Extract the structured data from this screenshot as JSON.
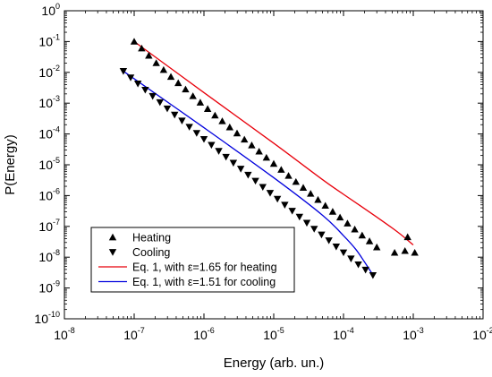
{
  "chart_data": {
    "type": "scatter",
    "xlabel": "Energy (arb. un.)",
    "ylabel": "P(Energy)",
    "x_scale": "log",
    "y_scale": "log",
    "xlim": [
      1e-08,
      0.01
    ],
    "ylim": [
      1e-10,
      1
    ],
    "x_ticks": [
      {
        "base": "10",
        "exp": "-8",
        "value": 1e-08
      },
      {
        "base": "10",
        "exp": "-7",
        "value": 1e-07
      },
      {
        "base": "10",
        "exp": "-6",
        "value": 1e-06
      },
      {
        "base": "10",
        "exp": "-5",
        "value": 1e-05
      },
      {
        "base": "10",
        "exp": "-4",
        "value": 0.0001
      },
      {
        "base": "10",
        "exp": "-3",
        "value": 0.001
      },
      {
        "base": "10",
        "exp": "-2",
        "value": 0.01
      }
    ],
    "y_ticks": [
      {
        "base": "10",
        "exp": "0",
        "value": 1
      },
      {
        "base": "10",
        "exp": "-1",
        "value": 0.1
      },
      {
        "base": "10",
        "exp": "-2",
        "value": 0.01
      },
      {
        "base": "10",
        "exp": "-3",
        "value": 0.001
      },
      {
        "base": "10",
        "exp": "-4",
        "value": 0.0001
      },
      {
        "base": "10",
        "exp": "-5",
        "value": 1e-05
      },
      {
        "base": "10",
        "exp": "-6",
        "value": 1e-06
      },
      {
        "base": "10",
        "exp": "-7",
        "value": 1e-07
      },
      {
        "base": "10",
        "exp": "-8",
        "value": 1e-08
      },
      {
        "base": "10",
        "exp": "-9",
        "value": 1e-09
      },
      {
        "base": "10",
        "exp": "-10",
        "value": 1e-10
      }
    ],
    "grid": false,
    "legend_position": "bottom-left",
    "series": [
      {
        "name": "Heating",
        "kind": "points",
        "marker": "triangle-up",
        "color": "#000000",
        "x": [
          1e-07,
          1.28e-07,
          1.62e-07,
          2.07e-07,
          2.64e-07,
          3.36e-07,
          4.28e-07,
          5.45e-07,
          6.95e-07,
          8.86e-07,
          1.13e-06,
          1.44e-06,
          1.83e-06,
          2.34e-06,
          2.98e-06,
          3.8e-06,
          4.84e-06,
          6.17e-06,
          7.86e-06,
          1e-05,
          1.28e-05,
          1.63e-05,
          2.08e-05,
          2.65e-05,
          3.38e-05,
          4.31e-05,
          5.49e-05,
          7e-05,
          8.92e-05,
          0.000114,
          0.000145,
          0.000185,
          0.000236,
          0.0003,
          0.00054,
          0.00076,
          0.00083,
          0.00105
        ],
        "y": [
          0.1,
          0.06,
          0.035,
          0.02,
          0.012,
          0.0072,
          0.0045,
          0.0028,
          0.0017,
          0.00105,
          0.00065,
          0.0004,
          0.00026,
          0.000165,
          0.000105,
          6.6e-05,
          4.3e-05,
          2.7e-05,
          1.7e-05,
          1.08e-05,
          6.9e-06,
          4.4e-06,
          2.8e-06,
          1.8e-06,
          1.15e-06,
          7.3e-07,
          4.7e-07,
          3e-07,
          1.95e-07,
          1.25e-07,
          8e-08,
          5.1e-08,
          3.3e-08,
          2.1e-08,
          1.4e-08,
          1.6e-08,
          4.5e-08,
          1.4e-08
        ]
      },
      {
        "name": "Cooling",
        "kind": "points",
        "marker": "triangle-down",
        "color": "#000000",
        "x": [
          7e-08,
          8.9e-08,
          1.13e-07,
          1.44e-07,
          1.84e-07,
          2.34e-07,
          2.98e-07,
          3.8e-07,
          4.84e-07,
          6.17e-07,
          7.86e-07,
          1e-06,
          1.28e-06,
          1.63e-06,
          2.07e-06,
          2.64e-06,
          3.37e-06,
          4.29e-06,
          5.47e-06,
          6.97e-06,
          8.88e-06,
          1.13e-05,
          1.44e-05,
          1.84e-05,
          2.34e-05,
          2.98e-05,
          3.8e-05,
          4.84e-05,
          6.17e-05,
          7.86e-05,
          0.0001,
          0.000128,
          0.000163,
          0.000207,
          0.000264
        ],
        "y": [
          0.011,
          0.0068,
          0.0043,
          0.0027,
          0.0017,
          0.00107,
          0.00067,
          0.00042,
          0.00027,
          0.00017,
          0.000107,
          6.8e-05,
          4.4e-05,
          2.8e-05,
          1.8e-05,
          1.15e-05,
          7.4e-06,
          4.7e-06,
          3e-06,
          1.9e-06,
          1.22e-06,
          7.8e-07,
          5e-07,
          3.2e-07,
          2.05e-07,
          1.3e-07,
          8.3e-08,
          5.4e-08,
          3.5e-08,
          2.2e-08,
          1.42e-08,
          9e-09,
          5.8e-09,
          3.9e-09,
          2.6e-09
        ]
      },
      {
        "name": "Eq. 1, with ε=1.65 for heating",
        "kind": "line",
        "color": "#e8000b",
        "x": [
          1e-07,
          1e-06,
          1e-05,
          5e-05,
          0.0001,
          0.0003,
          0.0006,
          0.001
        ],
        "y": [
          0.1,
          0.0022,
          5e-05,
          3.3e-06,
          1.1e-06,
          2e-07,
          6.5e-08,
          2.5e-08
        ]
      },
      {
        "name": "Eq. 1, with ε=1.51 for cooling",
        "kind": "line",
        "color": "#0000dd",
        "x": [
          7e-08,
          1e-07,
          1e-06,
          1e-05,
          5e-05,
          0.0001,
          0.00015,
          0.0002,
          0.00026
        ],
        "y": [
          0.011,
          0.0062,
          0.00016,
          3.8e-06,
          2.3e-07,
          5e-08,
          1.8e-08,
          7e-09,
          2.8e-09
        ]
      }
    ]
  },
  "legend": {
    "entries": [
      {
        "label": "Heating",
        "symbol": "triangle-up",
        "color": "#000000"
      },
      {
        "label": "Cooling",
        "symbol": "triangle-down",
        "color": "#000000"
      },
      {
        "label": "Eq. 1, with ε=1.65 for heating",
        "symbol": "line",
        "color": "#e8000b"
      },
      {
        "label": "Eq. 1, with ε=1.51 for cooling",
        "symbol": "line",
        "color": "#0000dd"
      }
    ]
  }
}
